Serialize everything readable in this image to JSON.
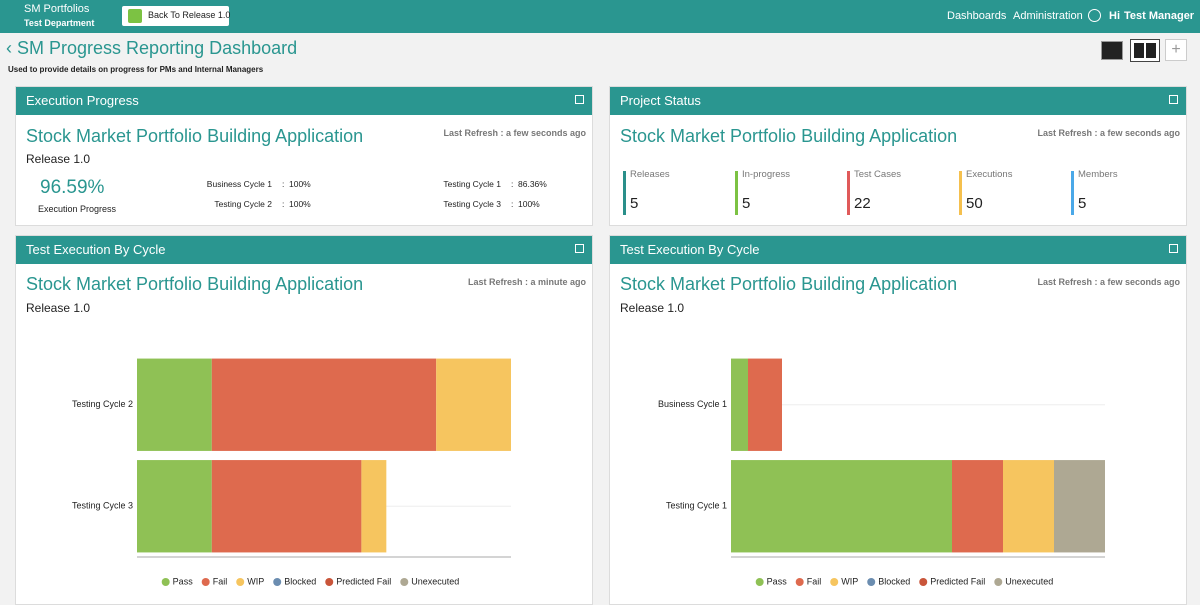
{
  "nav": {
    "brand": "SM Portfolios",
    "department": "Test Department",
    "back_button": "Back To Release 1.0",
    "links": [
      "Dashboards",
      "Administration"
    ],
    "greeting": "Hi",
    "user": "Test Manager"
  },
  "page": {
    "title": "SM Progress Reporting Dashboard",
    "subtitle": "Used to provide details on progress for PMs and Internal Managers"
  },
  "widgets": [
    {
      "header": "Execution Progress",
      "project": "Stock Market Portfolio Building Application",
      "refresh": "Last Refresh : a few seconds ago",
      "release": "Release 1.0",
      "progress_value": "96.59%",
      "progress_label": "Execution Progress",
      "separator": ":",
      "cycles": [
        {
          "name": "Business Cycle 1",
          "value": "100%"
        },
        {
          "name": "Testing Cycle 2",
          "value": "100%"
        },
        {
          "name": "Testing Cycle 1",
          "value": "86.36%"
        },
        {
          "name": "Testing Cycle 3",
          "value": "100%"
        }
      ]
    },
    {
      "header": "Project Status",
      "project": "Stock Market Portfolio Building Application",
      "refresh": "Last Refresh : a few seconds ago",
      "stats": [
        {
          "label": "Releases",
          "value": 5,
          "color": "#2a8f8a"
        },
        {
          "label": "In-progress",
          "value": 5,
          "color": "#7cc243"
        },
        {
          "label": "Test Cases",
          "value": 22,
          "color": "#e05a5a"
        },
        {
          "label": "Executions",
          "value": 50,
          "color": "#f5c04e"
        },
        {
          "label": "Members",
          "value": 5,
          "color": "#4aa8e8"
        }
      ]
    }
  ],
  "chart_data": [
    {
      "type": "bar",
      "orientation": "horizontal",
      "stacked": true,
      "header": "Test Execution By Cycle",
      "title": "Stock Market Portfolio Building Application",
      "subtitle": "Release 1.0",
      "refresh": "Last Refresh : a minute ago",
      "categories": [
        "Testing Cycle 2",
        "Testing Cycle 3"
      ],
      "xlim": [
        0,
        15
      ],
      "series": [
        {
          "name": "Pass",
          "color": "#8fc155",
          "values": [
            3,
            3
          ]
        },
        {
          "name": "Fail",
          "color": "#de6a4e",
          "values": [
            9,
            6
          ]
        },
        {
          "name": "WIP",
          "color": "#f6c55f",
          "values": [
            3,
            1
          ]
        },
        {
          "name": "Blocked",
          "color": "#6b8db0",
          "values": [
            0,
            0
          ]
        },
        {
          "name": "Predicted Fail",
          "color": "#c9553a",
          "values": [
            0,
            0
          ]
        },
        {
          "name": "Unexecuted",
          "color": "#aea893",
          "values": [
            0,
            0
          ]
        }
      ]
    },
    {
      "type": "bar",
      "orientation": "horizontal",
      "stacked": true,
      "header": "Test Execution By Cycle",
      "title": "Stock Market Portfolio Building Application",
      "subtitle": "Release 1.0",
      "refresh": "Last Refresh : a few seconds ago",
      "categories": [
        "Business Cycle 1",
        "Testing Cycle 1"
      ],
      "xlim": [
        0,
        22
      ],
      "series": [
        {
          "name": "Pass",
          "color": "#8fc155",
          "values": [
            1,
            13
          ]
        },
        {
          "name": "Fail",
          "color": "#de6a4e",
          "values": [
            2,
            3
          ]
        },
        {
          "name": "WIP",
          "color": "#f6c55f",
          "values": [
            0,
            3
          ]
        },
        {
          "name": "Blocked",
          "color": "#6b8db0",
          "values": [
            0,
            0
          ]
        },
        {
          "name": "Predicted Fail",
          "color": "#c9553a",
          "values": [
            0,
            0
          ]
        },
        {
          "name": "Unexecuted",
          "color": "#aea893",
          "values": [
            0,
            3
          ]
        }
      ]
    }
  ]
}
